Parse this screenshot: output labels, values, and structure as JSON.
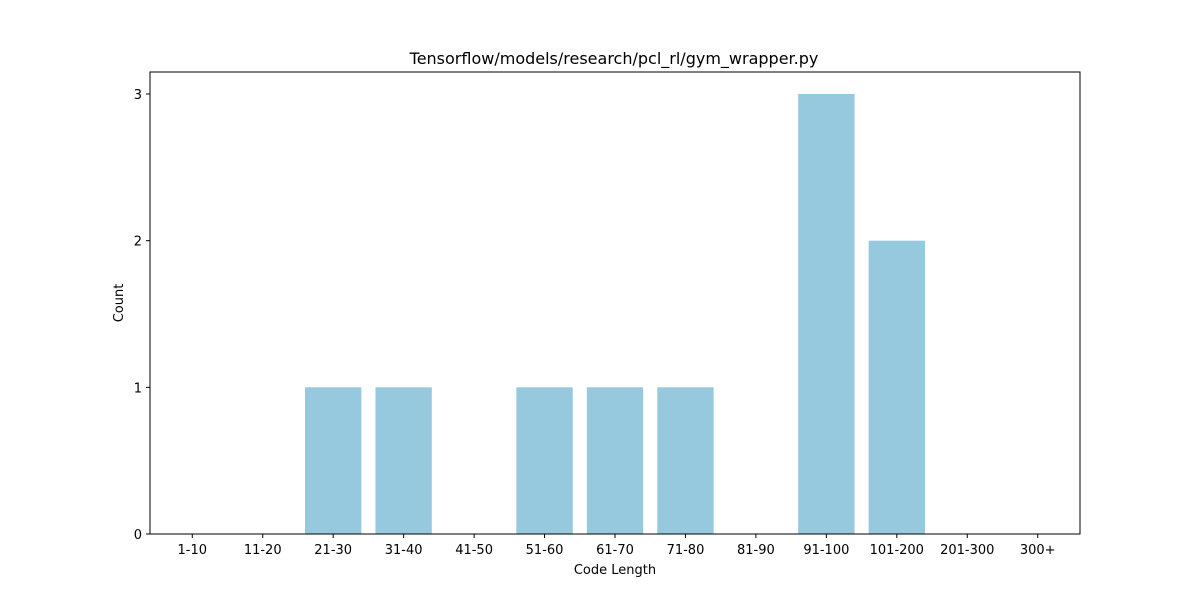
{
  "chart_data": {
    "type": "bar",
    "title": "Tensorflow/models/research/pcl_rl/gym_wrapper.py",
    "xlabel": "Code Length",
    "ylabel": "Count",
    "categories": [
      "1-10",
      "11-20",
      "21-30",
      "31-40",
      "41-50",
      "51-60",
      "61-70",
      "71-80",
      "81-90",
      "91-100",
      "101-200",
      "201-300",
      "300+"
    ],
    "values": [
      0,
      0,
      1,
      1,
      0,
      1,
      1,
      1,
      0,
      3,
      2,
      0,
      0
    ],
    "ylim": [
      0,
      3.15
    ],
    "yticks": [
      0,
      1,
      2,
      3
    ],
    "grid": false,
    "legend": "none",
    "bar_color": "#96c9dd",
    "axis_color": "#000000"
  }
}
